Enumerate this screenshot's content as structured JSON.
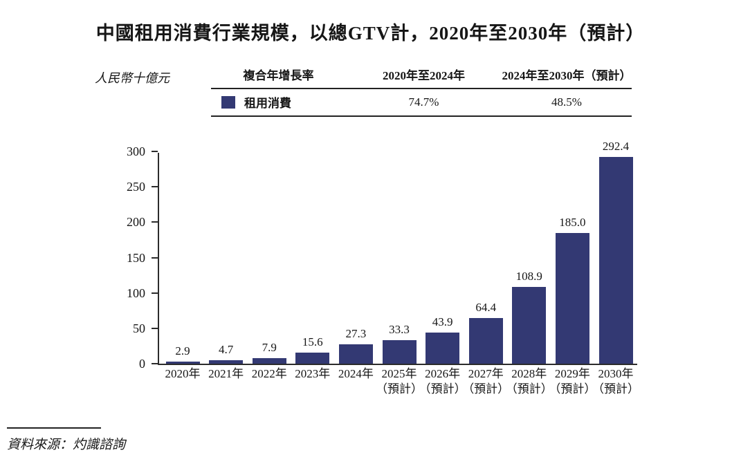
{
  "page": {
    "title": "中國租用消費行業規模，以總GTV計，2020年至2030年（預計）",
    "unit_label": "人民幣十億元",
    "source": "資料來源：灼識諮詢"
  },
  "cagr_table": {
    "col_headers": [
      "複合年增長率",
      "2020年至2024年",
      "2024年至2030年（預計）"
    ],
    "row": {
      "legend_label": "租用消費",
      "cagr_2020_2024": "74.7%",
      "cagr_2024_2030": "48.5%"
    }
  },
  "colors": {
    "bar": "#333973",
    "axis": "#2b2b2b",
    "text": "#161616"
  },
  "chart_data": {
    "type": "bar",
    "title": "中國租用消費行業規模，以總GTV計，2020年至2030年（預計）",
    "ylabel": "人民幣十億元",
    "ylim": [
      0,
      300
    ],
    "yticks": [
      0,
      50,
      100,
      150,
      200,
      250,
      300
    ],
    "grid": false,
    "legend_position": "top-table",
    "bar_color": "#333973",
    "categories": [
      "2020年",
      "2021年",
      "2022年",
      "2023年",
      "2024年",
      "2025年",
      "2026年",
      "2027年",
      "2028年",
      "2029年",
      "2030年"
    ],
    "category_notes": [
      "",
      "",
      "",
      "",
      "",
      "（預計）",
      "（預計）",
      "（預計）",
      "（預計）",
      "（預計）",
      "（預計）"
    ],
    "series": [
      {
        "name": "租用消費",
        "values": [
          2.9,
          4.7,
          7.9,
          15.6,
          27.3,
          33.3,
          43.9,
          64.4,
          108.9,
          185.0,
          292.4
        ]
      }
    ],
    "value_labels": [
      "2.9",
      "4.7",
      "7.9",
      "15.6",
      "27.3",
      "33.3",
      "43.9",
      "64.4",
      "108.9",
      "185.0",
      "292.4"
    ]
  }
}
